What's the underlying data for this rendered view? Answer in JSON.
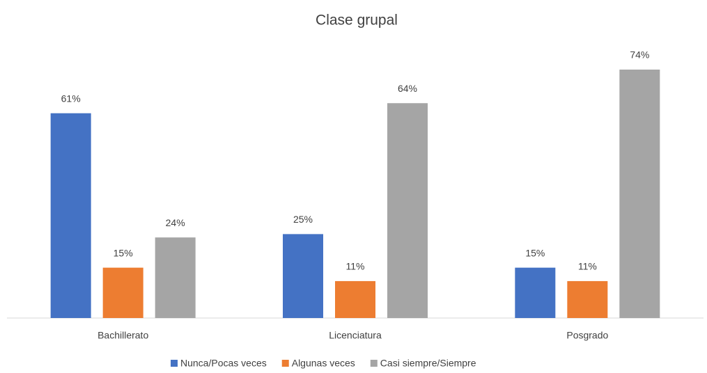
{
  "chart_data": {
    "type": "bar",
    "title": "Clase grupal",
    "categories": [
      "Bachillerato",
      "Licenciatura",
      "Posgrado"
    ],
    "series": [
      {
        "name": "Nunca/Pocas veces",
        "color": "#4472c4",
        "values": [
          61,
          25,
          15
        ],
        "value_labels": [
          "61%",
          "25%",
          "15%"
        ]
      },
      {
        "name": "Algunas veces",
        "color": "#ed7d31",
        "values": [
          15,
          11,
          11
        ],
        "value_labels": [
          "15%",
          "11%",
          "11%"
        ]
      },
      {
        "name": "Casi siempre/Siempre",
        "color": "#a5a5a5",
        "values": [
          24,
          64,
          74
        ],
        "value_labels": [
          "24%",
          "64%",
          "74%"
        ]
      }
    ],
    "legend": "bottom"
  }
}
